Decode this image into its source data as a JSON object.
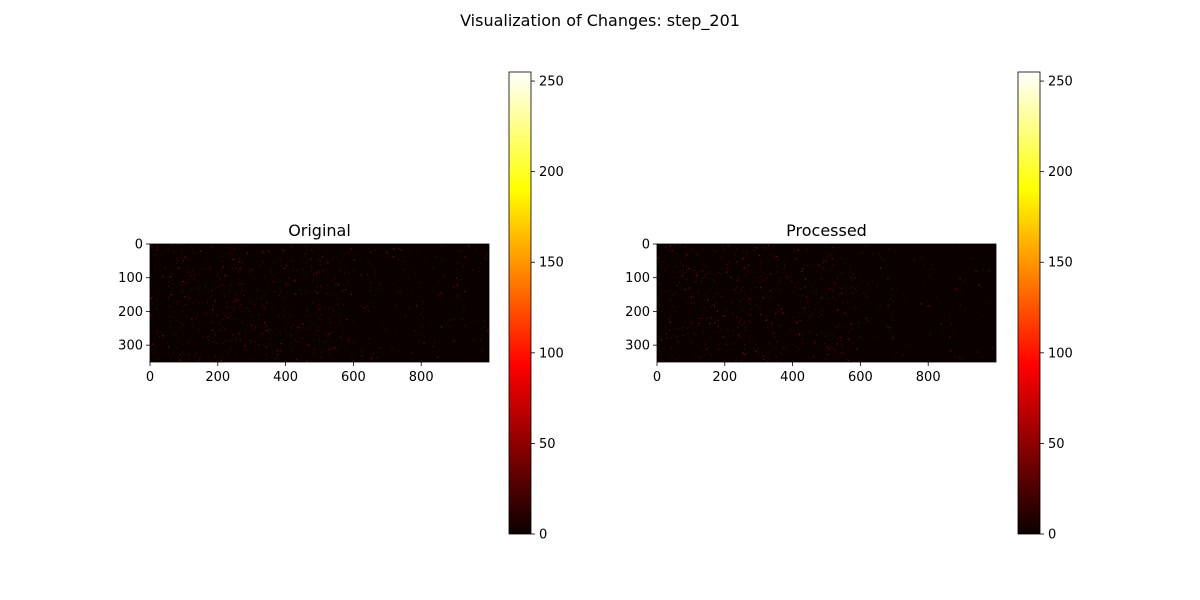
{
  "suptitle": "Visualization of Changes: step_201",
  "colormap": "hot",
  "chart_data": [
    {
      "type": "heatmap",
      "title": "Original",
      "xlim": [
        0,
        1000
      ],
      "ylim": [
        350,
        0
      ],
      "x_ticks": [
        0,
        200,
        400,
        600,
        800
      ],
      "y_ticks": [
        0,
        100,
        200,
        300
      ],
      "value_range": [
        0,
        255
      ],
      "colorbar_ticks": [
        0,
        50,
        100,
        150,
        200,
        250
      ],
      "background_value": 10,
      "sparse_noise": "faint dark-red speckles across the image, denser on the left half"
    },
    {
      "type": "heatmap",
      "title": "Processed",
      "xlim": [
        0,
        1000
      ],
      "ylim": [
        350,
        0
      ],
      "x_ticks": [
        0,
        200,
        400,
        600,
        800
      ],
      "y_ticks": [
        0,
        100,
        200,
        300
      ],
      "value_range": [
        0,
        255
      ],
      "colorbar_ticks": [
        0,
        50,
        100,
        150,
        200,
        250
      ],
      "background_value": 10,
      "sparse_noise": "faint dark-red speckles, sparser toward the right"
    }
  ]
}
